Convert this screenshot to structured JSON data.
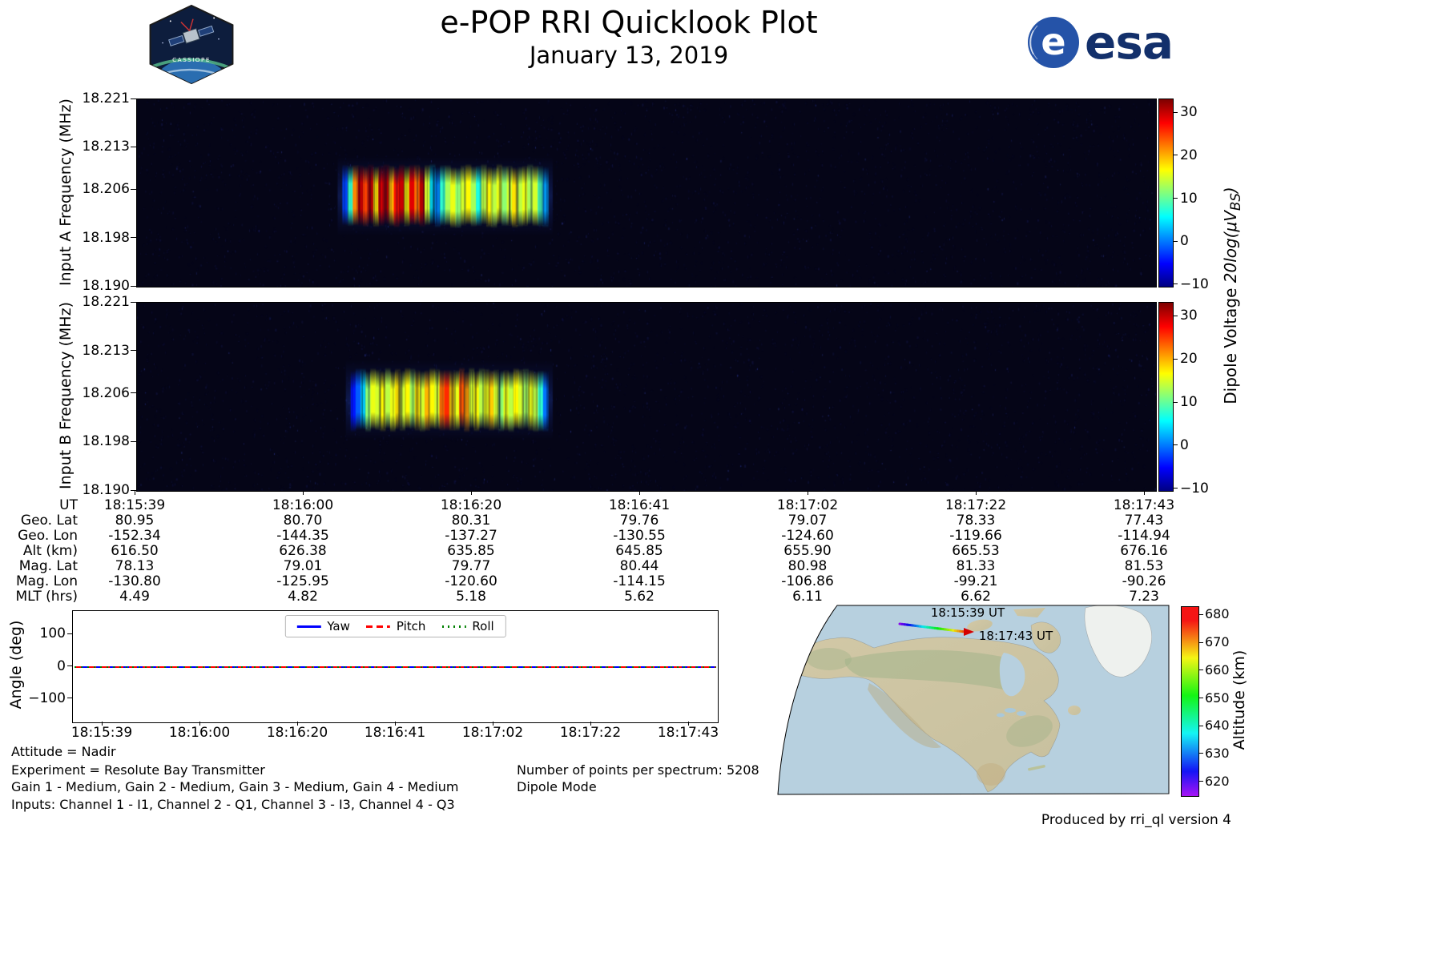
{
  "header": {
    "title": "e-POP RRI Quicklook Plot",
    "date": "January 13, 2019",
    "cassiope_patch_label": "CASSIOPE",
    "esa_logo_label": "esa"
  },
  "chart_data": [
    {
      "id": "input_a_spectrogram",
      "type": "heatmap",
      "ylabel": "Input A Frequency (MHz)",
      "ylim": [
        18.19,
        18.221
      ],
      "yticks": [
        "18.221",
        "18.213",
        "18.206",
        "18.198",
        "18.190"
      ],
      "ytick_values": [
        18.221,
        18.213,
        18.206,
        18.198,
        18.19
      ],
      "x_start": "18:15:39",
      "x_end": "18:17:43",
      "background_level_db": -10,
      "signal": {
        "time_start": "18:16:04",
        "time_end": "18:16:29",
        "freq_low_mhz": 18.201,
        "freq_high_mhz": 18.209,
        "column_intensities_db": [
          -2,
          8,
          22,
          30,
          25,
          31,
          18,
          29,
          31,
          20,
          27,
          30,
          17,
          29,
          23,
          31,
          15,
          5,
          1,
          8,
          13,
          16,
          12,
          15,
          17,
          13,
          7,
          14,
          17,
          14,
          16,
          12,
          15,
          18,
          14,
          16,
          13,
          15,
          9,
          2
        ]
      },
      "colorbar": {
        "label_plain": "Dipole Voltage ",
        "label_math": "20log(μV",
        "label_sub": "BS",
        "label_close": ")",
        "ticks": [
          "30",
          "20",
          "10",
          "0",
          "−10"
        ],
        "tick_values": [
          30,
          20,
          10,
          0,
          -10
        ],
        "vmin": -10.4,
        "vmax": 33.2
      }
    },
    {
      "id": "input_b_spectrogram",
      "type": "heatmap",
      "ylabel": "Input B Frequency (MHz)",
      "ylim": [
        18.19,
        18.221
      ],
      "yticks": [
        "18.221",
        "18.213",
        "18.206",
        "18.198",
        "18.190"
      ],
      "ytick_values": [
        18.221,
        18.213,
        18.206,
        18.198,
        18.19
      ],
      "x_start": "18:15:39",
      "x_end": "18:17:43",
      "background_level_db": -10,
      "signal": {
        "time_start": "18:16:05",
        "time_end": "18:16:29",
        "freq_low_mhz": 18.201,
        "freq_high_mhz": 18.209,
        "column_intensities_db": [
          -4,
          -1,
          4,
          12,
          16,
          15,
          17,
          14,
          16,
          18,
          15,
          17,
          13,
          18,
          15,
          20,
          17,
          15,
          23,
          26,
          19,
          16,
          24,
          21,
          15,
          17,
          14,
          16,
          19,
          15,
          12,
          16,
          14,
          17,
          15,
          13,
          16,
          14,
          8,
          0
        ]
      },
      "colorbar": {
        "ticks": [
          "30",
          "20",
          "10",
          "0",
          "−10"
        ],
        "tick_values": [
          30,
          20,
          10,
          0,
          -10
        ],
        "vmin": -10.4,
        "vmax": 33.2
      }
    },
    {
      "id": "attitude_angles",
      "type": "line",
      "ylabel": "Angle (deg)",
      "ylim": [
        -172,
        172
      ],
      "yticks": [
        "100",
        "0",
        "−100"
      ],
      "ytick_values": [
        100,
        0,
        -100
      ],
      "xticks": [
        "18:15:39",
        "18:16:00",
        "18:16:20",
        "18:16:41",
        "18:17:02",
        "18:17:22",
        "18:17:43"
      ],
      "series": [
        {
          "name": "Yaw",
          "color": "#0000ff",
          "line_style": "solid",
          "values": [
            0,
            0,
            0,
            0,
            0,
            0,
            0
          ]
        },
        {
          "name": "Pitch",
          "color": "#ff0000",
          "line_style": "dashed",
          "values": [
            0,
            0,
            0,
            0,
            0,
            0,
            0
          ]
        },
        {
          "name": "Roll",
          "color": "#008000",
          "line_style": "dotted",
          "values": [
            0,
            0,
            0,
            0,
            0,
            0,
            0
          ]
        }
      ]
    },
    {
      "id": "ephemeris_table",
      "type": "table",
      "rows": [
        {
          "label": "UT",
          "values": [
            "18:15:39",
            "18:16:00",
            "18:16:20",
            "18:16:41",
            "18:17:02",
            "18:17:22",
            "18:17:43"
          ]
        },
        {
          "label": "Geo. Lat",
          "values": [
            "80.95",
            "80.70",
            "80.31",
            "79.76",
            "79.07",
            "78.33",
            "77.43"
          ]
        },
        {
          "label": "Geo. Lon",
          "values": [
            "-152.34",
            "-144.35",
            "-137.27",
            "-130.55",
            "-124.60",
            "-119.66",
            "-114.94"
          ]
        },
        {
          "label": "Alt (km)",
          "values": [
            "616.50",
            "626.38",
            "635.85",
            "645.85",
            "655.90",
            "665.53",
            "676.16"
          ]
        },
        {
          "label": "Mag. Lat",
          "values": [
            "78.13",
            "79.01",
            "79.77",
            "80.44",
            "80.98",
            "81.33",
            "81.53"
          ]
        },
        {
          "label": "Mag. Lon",
          "values": [
            "-130.80",
            "-125.95",
            "-120.60",
            "-114.15",
            "-106.86",
            "-99.21",
            "-90.26"
          ]
        },
        {
          "label": "MLT (hrs)",
          "values": [
            "4.49",
            "4.82",
            "5.18",
            "5.62",
            "6.11",
            "6.62",
            "7.23"
          ]
        }
      ]
    },
    {
      "id": "ground_track_map",
      "type": "map",
      "track_start_label": "18:15:39 UT",
      "track_end_label": "18:17:43 UT",
      "track_altitude_start_km": 616.5,
      "track_altitude_end_km": 676.16,
      "colorbar": {
        "label": "Altitude (km)",
        "ticks": [
          "680",
          "670",
          "660",
          "650",
          "640",
          "630",
          "620"
        ],
        "tick_values": [
          680,
          670,
          660,
          650,
          640,
          630,
          620
        ],
        "vmin": 615,
        "vmax": 683
      }
    }
  ],
  "annotations": {
    "attitude": "Attitude = Nadir",
    "experiment": "Experiment = Resolute Bay Transmitter",
    "gains": "Gain 1 - Medium, Gain 2 - Medium, Gain 3 - Medium, Gain 4 - Medium",
    "inputs": "Inputs: Channel 1 - I1, Channel 2 - Q1, Channel 3 - I3, Channel 4 - Q3",
    "points_per_spectrum": "Number of points per spectrum: 5208",
    "mode": "Dipole Mode"
  },
  "footer": {
    "produced_by": "Produced by rri_ql version 4"
  }
}
